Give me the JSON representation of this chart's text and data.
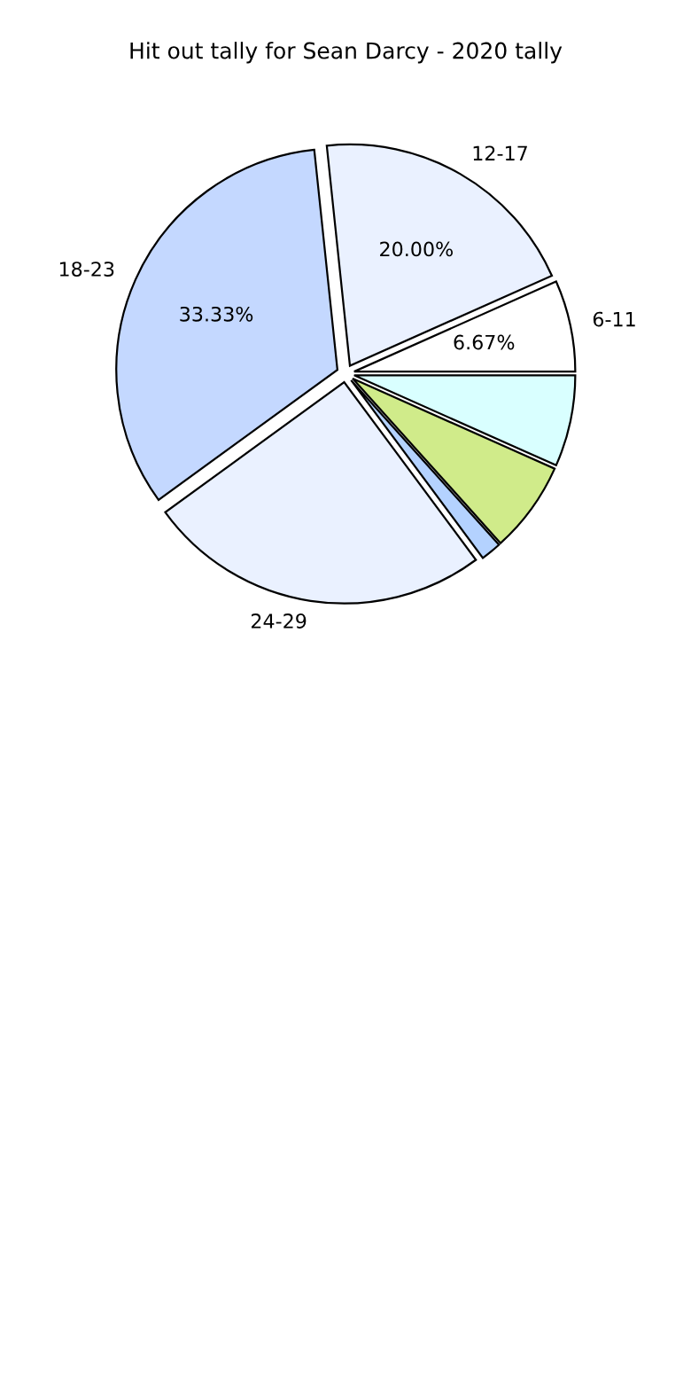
{
  "chart_data": {
    "type": "pie",
    "title": "Hit out tally for Sean Darcy - 2020 tally",
    "categories": [
      "6-11",
      "12-17",
      "18-23",
      "24-29",
      null,
      null,
      null
    ],
    "values": [
      6.67,
      20.0,
      33.33,
      25.16,
      1.5,
      6.67,
      6.67
    ],
    "value_labels": [
      "6.67%",
      "20.00%",
      "33.33%",
      null,
      null,
      null,
      null
    ],
    "colors": [
      "#ffffff",
      "#eaf1ff",
      "#c4d8ff",
      "#eaf1ff",
      "#b4d2ff",
      "#d0eb8a",
      "#d9ffff"
    ]
  }
}
